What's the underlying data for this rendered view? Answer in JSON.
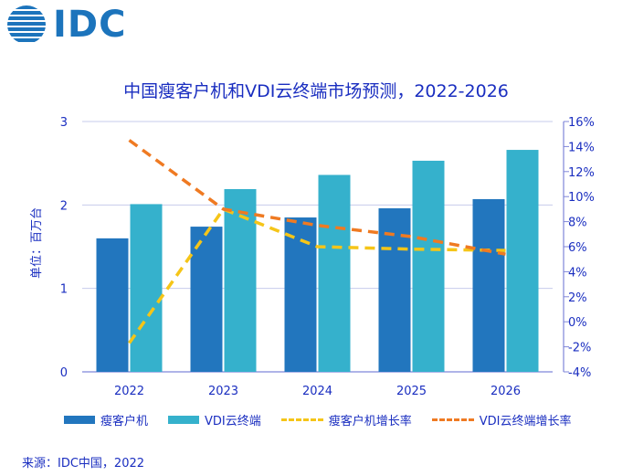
{
  "brand": {
    "logo_text": "IDC",
    "color": "#1c74bc",
    "globe_icon": "globe-icon"
  },
  "colors": {
    "text_blue": "#1a2ec0",
    "bar_thin_client": "#2276be",
    "bar_vdi": "#35b1cc",
    "line_thin_client": "#f5c518",
    "line_vdi": "#ef7a22",
    "axis_line": "#7f86d9",
    "grid": "#c7cbeb"
  },
  "chart_data": {
    "type": "bar",
    "title": "中国瘦客户机和VDI云终端市场预测，2022-2026",
    "ylabel": "单位：百万台",
    "categories": [
      "2022",
      "2023",
      "2024",
      "2025",
      "2026"
    ],
    "ylim": [
      0,
      3
    ],
    "y_ticks": [
      "0",
      "1",
      "2",
      "3"
    ],
    "y2lim": [
      -4,
      16
    ],
    "y2_ticks": [
      "-4%",
      "-2%",
      "0%",
      "2%",
      "4%",
      "6%",
      "8%",
      "10%",
      "12%",
      "14%",
      "16%"
    ],
    "grid": true,
    "series": [
      {
        "name": "瘦客户机",
        "kind": "bar",
        "axis": "left",
        "values": [
          1.6,
          1.74,
          1.85,
          1.96,
          2.07
        ]
      },
      {
        "name": "VDI云终端",
        "kind": "bar",
        "axis": "left",
        "values": [
          2.01,
          2.19,
          2.36,
          2.53,
          2.66
        ]
      },
      {
        "name": "瘦客户机增长率",
        "kind": "line",
        "style": "dashed",
        "axis": "right",
        "values": [
          -1.7,
          9.0,
          6.0,
          5.8,
          5.7
        ]
      },
      {
        "name": "VDI云终端增长率",
        "kind": "line",
        "style": "dashed",
        "axis": "right",
        "values": [
          14.5,
          9.0,
          7.7,
          6.8,
          5.4
        ]
      }
    ],
    "legend_position": "bottom"
  },
  "source": "来源：IDC中国，2022"
}
